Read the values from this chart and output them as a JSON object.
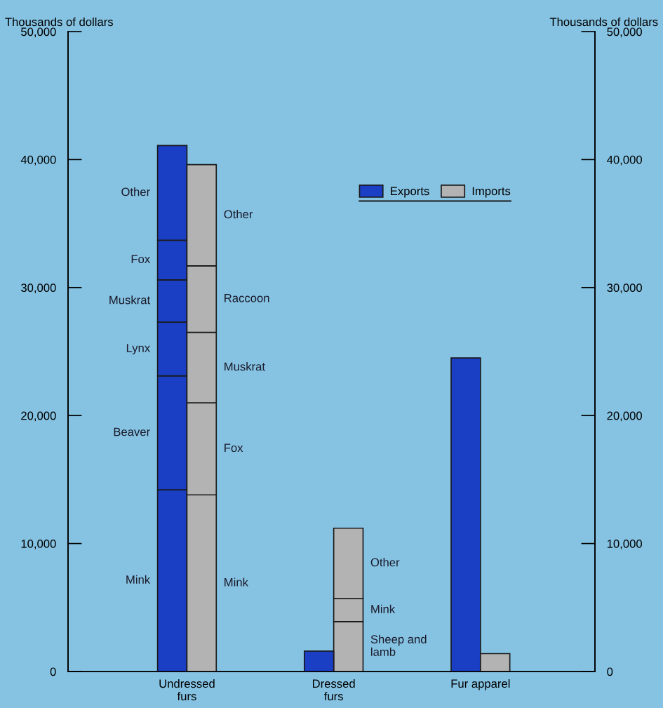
{
  "chart_data": {
    "type": "bar",
    "stacked": true,
    "ylabel": "Thousands of dollars",
    "y2label": "Thousands of dollars",
    "categories": [
      null,
      null,
      null,
      null,
      null,
      null
    ],
    "annotations": [
      "Undressed\nfurs",
      "Dressed\nfurs",
      "Fur apparel"
    ],
    "ylim": [
      0,
      50000
    ],
    "y2lim": [
      0,
      50000
    ],
    "yticks": [
      0,
      {
        "value": 10000,
        "label": "10,000"
      },
      {
        "value": 20000,
        "label": "20,000"
      },
      {
        "value": 30000,
        "label": "30,000"
      },
      {
        "value": 40000,
        "label": "40,000"
      },
      {
        "value": 50000,
        "label": "50,000"
      }
    ],
    "y2ticks": [
      0,
      {
        "value": 10000,
        "label": "10,000"
      },
      {
        "value": 20000,
        "label": "20,000"
      },
      {
        "value": 30000,
        "label": "30,000"
      },
      {
        "value": 40000,
        "label": "40,000"
      },
      {
        "value": 50000,
        "label": "50,000"
      }
    ],
    "legend": "top right",
    "grid": false,
    "series": [
      {
        "name": "Mink",
        "color": "#1a3fc4",
        "values": [
          14200,
          null,
          null,
          null,
          null,
          null
        ]
      },
      {
        "name": "Beaver",
        "color": "#1a3fc4",
        "values": [
          8900,
          null,
          null,
          null,
          null,
          null
        ]
      },
      {
        "name": "Lynx",
        "color": "#1a3fc4",
        "values": [
          4200,
          null,
          null,
          null,
          null,
          null
        ]
      },
      {
        "name": "Muskrat",
        "color": "#1a3fc4",
        "values": [
          3300,
          null,
          null,
          null,
          null,
          null
        ]
      },
      {
        "name": "Fox",
        "color": "#1a3fc4",
        "values": [
          3100,
          null,
          null,
          null,
          null,
          null
        ]
      },
      {
        "name": "Other",
        "color": "#1a3fc4",
        "values": [
          7400,
          null,
          null,
          null,
          null,
          null
        ]
      },
      {
        "name": "Mink",
        "color": "#b3b3b3",
        "values": [
          null,
          13800,
          null,
          null,
          null,
          null
        ]
      },
      {
        "name": "Fox",
        "color": "#b3b3b3",
        "values": [
          null,
          7200,
          null,
          null,
          null,
          null
        ]
      },
      {
        "name": "Muskrat",
        "color": "#b3b3b3",
        "values": [
          null,
          5500,
          null,
          null,
          null,
          null
        ]
      },
      {
        "name": "Raccoon",
        "color": "#b3b3b3",
        "values": [
          null,
          5200,
          null,
          null,
          null,
          null
        ]
      },
      {
        "name": "Other",
        "color": "#b3b3b3",
        "values": [
          null,
          7900,
          null,
          null,
          null,
          null
        ]
      },
      {
        "name": "Sheep and\nlamb",
        "color": "#b3b3b3",
        "values": [
          null,
          null,
          null,
          3900,
          null,
          null
        ]
      },
      {
        "name": "Mink",
        "color": "#b3b3b3",
        "values": [
          null,
          null,
          null,
          1800,
          null,
          null
        ]
      },
      {
        "name": "Other",
        "color": "#b3b3b3",
        "values": [
          null,
          null,
          null,
          5500,
          null,
          null
        ]
      },
      {
        "name": "Exports",
        "color": "#1a3fc4",
        "values": [
          null,
          null,
          1600,
          null,
          24500,
          null
        ]
      },
      {
        "name": "Imports",
        "color": "#b3b3b3",
        "values": [
          null,
          null,
          null,
          null,
          null,
          1400
        ]
      }
    ]
  }
}
